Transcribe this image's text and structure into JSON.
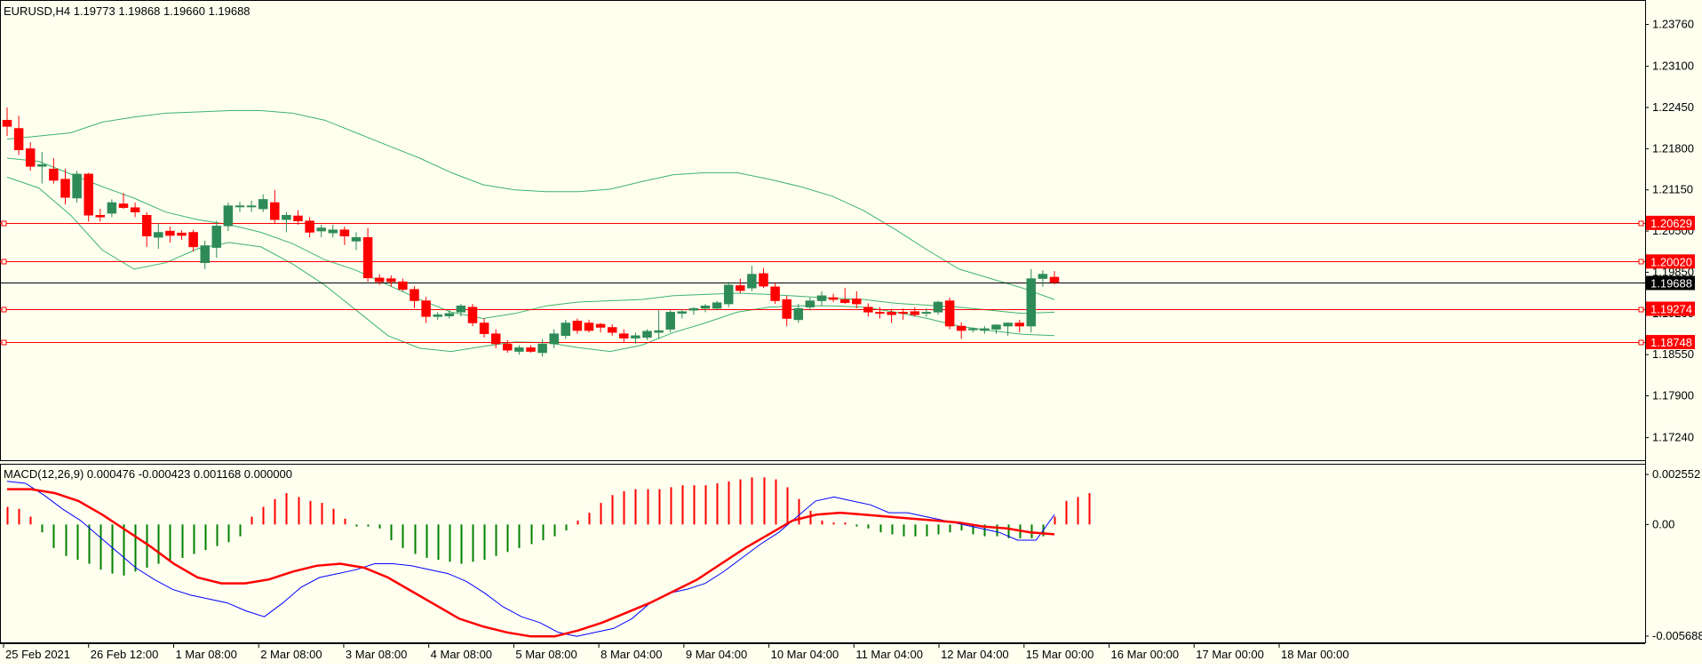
{
  "header": {
    "symbol_info": "EURUSD,H4  1.19773 1.19868 1.19660 1.19688"
  },
  "macd": {
    "label": "MACD(12,26,9) 0.000476 -0.000423 0.001168 0.000000"
  },
  "colors": {
    "background": "#fffff0",
    "bull": "#2e8b57",
    "bear": "#ff0000",
    "bands": "#3cb371",
    "level_lines": "#ff0000",
    "macd_main": "#0000ff",
    "macd_signal": "#ff0000"
  },
  "chart_data": [
    {
      "type": "candlestick",
      "title": "EURUSD,H4",
      "ohlc_current": {
        "open": 1.19773,
        "high": 1.19868,
        "low": 1.1966,
        "close": 1.19688
      },
      "current_price": "1.19688",
      "ylim": [
        1.1694,
        1.2409
      ],
      "y_ticks": [
        "1.23760",
        "1.23100",
        "1.22450",
        "1.21800",
        "1.21150",
        "1.20500",
        "1.19850",
        "1.19200",
        "1.18550",
        "1.17900",
        "1.17240"
      ],
      "horizontal_levels": [
        "1.20629",
        "1.20020",
        "1.19274",
        "1.18748"
      ],
      "x_labels": [
        "25 Feb 2021",
        "26 Feb 12:00",
        "1 Mar 08:00",
        "2 Mar 08:00",
        "3 Mar 08:00",
        "4 Mar 08:00",
        "5 Mar 08:00",
        "8 Mar 04:00",
        "9 Mar 04:00",
        "10 Mar 04:00",
        "11 Mar 04:00",
        "12 Mar 04:00",
        "15 Mar 00:00",
        "16 Mar 00:00",
        "17 Mar 00:00",
        "18 Mar 00:00"
      ],
      "series": [
        {
          "values": [
            {
              "o": 1.2225,
              "h": 1.2245,
              "l": 1.22,
              "c": 1.2215
            },
            {
              "o": 1.2212,
              "h": 1.2232,
              "l": 1.217,
              "c": 1.2178
            },
            {
              "o": 1.218,
              "h": 1.219,
              "l": 1.2145,
              "c": 1.2152
            },
            {
              "o": 1.2152,
              "h": 1.2175,
              "l": 1.2125,
              "c": 1.2155
            },
            {
              "o": 1.2148,
              "h": 1.2165,
              "l": 1.2125,
              "c": 1.213
            },
            {
              "o": 1.2132,
              "h": 1.2148,
              "l": 1.2092,
              "c": 1.2103
            },
            {
              "o": 1.2102,
              "h": 1.2145,
              "l": 1.2095,
              "c": 1.214
            },
            {
              "o": 1.214,
              "h": 1.2142,
              "l": 1.2065,
              "c": 1.2075
            },
            {
              "o": 1.2075,
              "h": 1.2085,
              "l": 1.2065,
              "c": 1.2072
            },
            {
              "o": 1.2078,
              "h": 1.21,
              "l": 1.2072,
              "c": 1.2095
            },
            {
              "o": 1.2093,
              "h": 1.211,
              "l": 1.2085,
              "c": 1.2087
            },
            {
              "o": 1.2087,
              "h": 1.2095,
              "l": 1.2072,
              "c": 1.208
            },
            {
              "o": 1.2075,
              "h": 1.208,
              "l": 1.2025,
              "c": 1.2042
            },
            {
              "o": 1.204,
              "h": 1.2062,
              "l": 1.2022,
              "c": 1.2048
            },
            {
              "o": 1.205,
              "h": 1.2057,
              "l": 1.2032,
              "c": 1.2043
            },
            {
              "o": 1.2047,
              "h": 1.2051,
              "l": 1.2036,
              "c": 1.2043
            },
            {
              "o": 1.2048,
              "h": 1.2052,
              "l": 1.2018,
              "c": 1.2025
            },
            {
              "o": 1.2,
              "h": 1.2035,
              "l": 1.199,
              "c": 1.2027
            },
            {
              "o": 1.2024,
              "h": 1.2066,
              "l": 1.2008,
              "c": 1.2058
            },
            {
              "o": 1.2058,
              "h": 1.2095,
              "l": 1.205,
              "c": 1.209
            },
            {
              "o": 1.2088,
              "h": 1.2096,
              "l": 1.208,
              "c": 1.209
            },
            {
              "o": 1.2088,
              "h": 1.2098,
              "l": 1.208,
              "c": 1.209
            },
            {
              "o": 1.2085,
              "h": 1.2108,
              "l": 1.208,
              "c": 1.21
            },
            {
              "o": 1.2095,
              "h": 1.2115,
              "l": 1.2062,
              "c": 1.2068
            },
            {
              "o": 1.2068,
              "h": 1.208,
              "l": 1.2048,
              "c": 1.2075
            },
            {
              "o": 1.2074,
              "h": 1.2083,
              "l": 1.206,
              "c": 1.2066
            },
            {
              "o": 1.2066,
              "h": 1.2072,
              "l": 1.204,
              "c": 1.2048
            },
            {
              "o": 1.205,
              "h": 1.206,
              "l": 1.204,
              "c": 1.2055
            },
            {
              "o": 1.2047,
              "h": 1.206,
              "l": 1.204,
              "c": 1.2052
            },
            {
              "o": 1.2052,
              "h": 1.2057,
              "l": 1.2028,
              "c": 1.2042
            },
            {
              "o": 1.2034,
              "h": 1.2048,
              "l": 1.202,
              "c": 1.204
            },
            {
              "o": 1.204,
              "h": 1.2055,
              "l": 1.197,
              "c": 1.1976
            },
            {
              "o": 1.1976,
              "h": 1.1982,
              "l": 1.1965,
              "c": 1.197
            },
            {
              "o": 1.1975,
              "h": 1.198,
              "l": 1.1962,
              "c": 1.197
            },
            {
              "o": 1.197,
              "h": 1.1975,
              "l": 1.1955,
              "c": 1.1958
            },
            {
              "o": 1.1958,
              "h": 1.1963,
              "l": 1.1928,
              "c": 1.194
            },
            {
              "o": 1.194,
              "h": 1.1946,
              "l": 1.1905,
              "c": 1.1915
            },
            {
              "o": 1.1915,
              "h": 1.1922,
              "l": 1.191,
              "c": 1.1918
            },
            {
              "o": 1.1916,
              "h": 1.1925,
              "l": 1.1912,
              "c": 1.192
            },
            {
              "o": 1.1922,
              "h": 1.1935,
              "l": 1.1915,
              "c": 1.1932
            },
            {
              "o": 1.193,
              "h": 1.1935,
              "l": 1.19,
              "c": 1.1905
            },
            {
              "o": 1.1905,
              "h": 1.1912,
              "l": 1.1882,
              "c": 1.1888
            },
            {
              "o": 1.1888,
              "h": 1.1895,
              "l": 1.1865,
              "c": 1.1872
            },
            {
              "o": 1.1872,
              "h": 1.1878,
              "l": 1.1858,
              "c": 1.1862
            },
            {
              "o": 1.186,
              "h": 1.187,
              "l": 1.1855,
              "c": 1.1866
            },
            {
              "o": 1.1866,
              "h": 1.187,
              "l": 1.1858,
              "c": 1.186
            },
            {
              "o": 1.1858,
              "h": 1.188,
              "l": 1.1852,
              "c": 1.1872
            },
            {
              "o": 1.1872,
              "h": 1.1895,
              "l": 1.1865,
              "c": 1.1888
            },
            {
              "o": 1.1885,
              "h": 1.191,
              "l": 1.188,
              "c": 1.1905
            },
            {
              "o": 1.1908,
              "h": 1.1912,
              "l": 1.1888,
              "c": 1.1893
            },
            {
              "o": 1.1905,
              "h": 1.191,
              "l": 1.189,
              "c": 1.1893
            },
            {
              "o": 1.1903,
              "h": 1.1905,
              "l": 1.189,
              "c": 1.1898
            },
            {
              "o": 1.1898,
              "h": 1.1903,
              "l": 1.1885,
              "c": 1.189
            },
            {
              "o": 1.1888,
              "h": 1.1895,
              "l": 1.1875,
              "c": 1.1881
            },
            {
              "o": 1.1881,
              "h": 1.189,
              "l": 1.1872,
              "c": 1.1885
            },
            {
              "o": 1.1882,
              "h": 1.1895,
              "l": 1.1878,
              "c": 1.1892
            },
            {
              "o": 1.189,
              "h": 1.1925,
              "l": 1.188,
              "c": 1.1893
            },
            {
              "o": 1.1895,
              "h": 1.1925,
              "l": 1.189,
              "c": 1.1922
            },
            {
              "o": 1.192,
              "h": 1.1926,
              "l": 1.1912,
              "c": 1.1923
            },
            {
              "o": 1.1925,
              "h": 1.193,
              "l": 1.1918,
              "c": 1.1928
            },
            {
              "o": 1.1928,
              "h": 1.1935,
              "l": 1.1922,
              "c": 1.1932
            },
            {
              "o": 1.1928,
              "h": 1.194,
              "l": 1.1925,
              "c": 1.1937
            },
            {
              "o": 1.1935,
              "h": 1.197,
              "l": 1.193,
              "c": 1.1965
            },
            {
              "o": 1.1964,
              "h": 1.1975,
              "l": 1.1952,
              "c": 1.1956
            },
            {
              "o": 1.196,
              "h": 1.1995,
              "l": 1.1955,
              "c": 1.1982
            },
            {
              "o": 1.1983,
              "h": 1.1992,
              "l": 1.196,
              "c": 1.1963
            },
            {
              "o": 1.1962,
              "h": 1.1968,
              "l": 1.1935,
              "c": 1.194
            },
            {
              "o": 1.1942,
              "h": 1.1948,
              "l": 1.19,
              "c": 1.1912
            },
            {
              "o": 1.191,
              "h": 1.1935,
              "l": 1.1905,
              "c": 1.1928
            },
            {
              "o": 1.193,
              "h": 1.1945,
              "l": 1.1925,
              "c": 1.194
            },
            {
              "o": 1.194,
              "h": 1.1955,
              "l": 1.1932,
              "c": 1.1948
            },
            {
              "o": 1.1945,
              "h": 1.1951,
              "l": 1.1938,
              "c": 1.1942
            },
            {
              "o": 1.1942,
              "h": 1.196,
              "l": 1.1935,
              "c": 1.1937
            },
            {
              "o": 1.1943,
              "h": 1.1955,
              "l": 1.1928,
              "c": 1.1935
            },
            {
              "o": 1.193,
              "h": 1.1936,
              "l": 1.1915,
              "c": 1.1922
            },
            {
              "o": 1.1922,
              "h": 1.193,
              "l": 1.1912,
              "c": 1.192
            },
            {
              "o": 1.1922,
              "h": 1.1927,
              "l": 1.1905,
              "c": 1.1918
            },
            {
              "o": 1.1922,
              "h": 1.1928,
              "l": 1.191,
              "c": 1.192
            },
            {
              "o": 1.1923,
              "h": 1.193,
              "l": 1.1915,
              "c": 1.1918
            },
            {
              "o": 1.192,
              "h": 1.1928,
              "l": 1.1915,
              "c": 1.1922
            },
            {
              "o": 1.1922,
              "h": 1.194,
              "l": 1.1918,
              "c": 1.1938
            },
            {
              "o": 1.194,
              "h": 1.1945,
              "l": 1.1895,
              "c": 1.19
            },
            {
              "o": 1.19,
              "h": 1.1906,
              "l": 1.188,
              "c": 1.1893
            },
            {
              "o": 1.1895,
              "h": 1.1898,
              "l": 1.189,
              "c": 1.1896
            },
            {
              "o": 1.1893,
              "h": 1.19,
              "l": 1.1888,
              "c": 1.1896
            },
            {
              "o": 1.1895,
              "h": 1.1903,
              "l": 1.1888,
              "c": 1.1902
            },
            {
              "o": 1.19,
              "h": 1.1906,
              "l": 1.1885,
              "c": 1.1905
            },
            {
              "o": 1.1905,
              "h": 1.191,
              "l": 1.189,
              "c": 1.19
            },
            {
              "o": 1.19,
              "h": 1.199,
              "l": 1.189,
              "c": 1.1975
            },
            {
              "o": 1.1975,
              "h": 1.1988,
              "l": 1.1962,
              "c": 1.1982
            },
            {
              "o": 1.19773,
              "h": 1.19868,
              "l": 1.1966,
              "c": 1.19688
            }
          ]
        }
      ],
      "bollinger": {
        "upper": [
          1.2195,
          1.22,
          1.2205,
          1.2222,
          1.223,
          1.2236,
          1.2238,
          1.224,
          1.224,
          1.2236,
          1.2225,
          1.2205,
          1.2185,
          1.2165,
          1.2142,
          1.2123,
          1.2115,
          1.2112,
          1.2112,
          1.2116,
          1.2128,
          1.2139,
          1.2142,
          1.2142,
          1.2132,
          1.212,
          1.2105,
          1.2082,
          1.2052,
          1.202,
          1.199,
          1.1975,
          1.196,
          1.1942
        ],
        "middle": [
          1.2165,
          1.216,
          1.214,
          1.212,
          1.2102,
          1.208,
          1.2068,
          1.206,
          1.2048,
          1.203,
          1.2005,
          1.1988,
          1.1965,
          1.1942,
          1.1922,
          1.1912,
          1.192,
          1.1932,
          1.1938,
          1.194,
          1.1942,
          1.1948,
          1.195,
          1.1952,
          1.195,
          1.1947,
          1.1944,
          1.1942,
          1.1936,
          1.1933,
          1.193,
          1.1925,
          1.192,
          1.1922
        ],
        "lower": [
          1.2135,
          1.2118,
          1.2075,
          1.202,
          1.199,
          1.2,
          1.2022,
          1.2032,
          1.2025,
          1.1998,
          1.1965,
          1.1925,
          1.1885,
          1.1865,
          1.186,
          1.1868,
          1.1875,
          1.1874,
          1.1866,
          1.186,
          1.187,
          1.189,
          1.1905,
          1.1922,
          1.193,
          1.1932,
          1.1932,
          1.193,
          1.1922,
          1.1912,
          1.19,
          1.1893,
          1.1887,
          1.1885
        ]
      }
    },
    {
      "type": "bar",
      "title": "MACD(12,26,9) 0.000476 -0.000423 0.001168 0.000000",
      "ylim": [
        -0.005688,
        0.002552
      ],
      "y_ticks": [
        "0.002552",
        "0.00",
        "-0.005688"
      ],
      "histogram": [
        0.0009,
        0.0008,
        0.0004,
        -0.0004,
        -0.0012,
        -0.0016,
        -0.0018,
        -0.002,
        -0.0023,
        -0.0025,
        -0.0026,
        -0.0024,
        -0.0022,
        -0.002,
        -0.0019,
        -0.0017,
        -0.0015,
        -0.0013,
        -0.0011,
        -0.0009,
        -0.0006,
        0.0004,
        0.0009,
        0.0013,
        0.0016,
        0.0014,
        0.0012,
        0.0011,
        0.0008,
        0.0003,
        -0.0001,
        -0.0001,
        -0.0002,
        -0.0008,
        -0.0012,
        -0.0015,
        -0.0017,
        -0.0018,
        -0.0019,
        -0.002,
        -0.0019,
        -0.0018,
        -0.0016,
        -0.0014,
        -0.0012,
        -0.001,
        -0.0008,
        -0.0006,
        -0.0003,
        0.0002,
        0.0006,
        0.0011,
        0.0015,
        0.0017,
        0.0018,
        0.0018,
        0.0018,
        0.0019,
        0.002,
        0.002,
        0.002,
        0.0021,
        0.0022,
        0.0023,
        0.0024,
        0.0024,
        0.0023,
        0.0019,
        0.0013,
        0.0007,
        0.0002,
        0.0001,
        0.0001,
        -0.0001,
        -0.0002,
        -0.0004,
        -0.0005,
        -0.0006,
        -0.0006,
        -0.0006,
        -0.0005,
        -0.0004,
        -0.0003,
        -0.0005,
        -0.0006,
        -0.0006,
        -0.0007,
        -0.0007,
        -0.0007,
        -0.0006,
        0.0004,
        0.0012,
        0.0014,
        0.0016
      ],
      "main_line": [
        0.0022,
        0.0021,
        0.0015,
        0.0008,
        0.0002,
        -0.0006,
        -0.0014,
        -0.0022,
        -0.0028,
        -0.0033,
        -0.0036,
        -0.0038,
        -0.004,
        -0.0044,
        -0.0047,
        -0.004,
        -0.0032,
        -0.0027,
        -0.0025,
        -0.0023,
        -0.002,
        -0.002,
        -0.0021,
        -0.0023,
        -0.0025,
        -0.0029,
        -0.0035,
        -0.0042,
        -0.0047,
        -0.005,
        -0.0055,
        -0.0057,
        -0.0055,
        -0.0053,
        -0.0048,
        -0.004,
        -0.0035,
        -0.0033,
        -0.003,
        -0.0024,
        -0.0017,
        -0.001,
        -0.0004,
        0.0004,
        0.0012,
        0.0014,
        0.0012,
        0.001,
        0.0006,
        0.0006,
        0.0004,
        0.0002,
        0.0,
        -0.0002,
        -0.0004,
        -0.0008,
        -0.0008,
        0.0005
      ],
      "signal_line": [
        0.0018,
        0.0018,
        0.0016,
        0.0012,
        0.0005,
        -0.0003,
        -0.0011,
        -0.002,
        -0.0027,
        -0.003,
        -0.003,
        -0.0028,
        -0.0024,
        -0.0021,
        -0.002,
        -0.0022,
        -0.0027,
        -0.0034,
        -0.0041,
        -0.0048,
        -0.0052,
        -0.0055,
        -0.0057,
        -0.0057,
        -0.0054,
        -0.005,
        -0.0045,
        -0.004,
        -0.0034,
        -0.0028,
        -0.002,
        -0.0012,
        -0.0005,
        0.0002,
        0.0005,
        0.0006,
        0.0005,
        0.0004,
        0.0003,
        0.0002,
        0.0001,
        -0.0001,
        -0.0002,
        -0.0004,
        -0.0005
      ]
    }
  ]
}
